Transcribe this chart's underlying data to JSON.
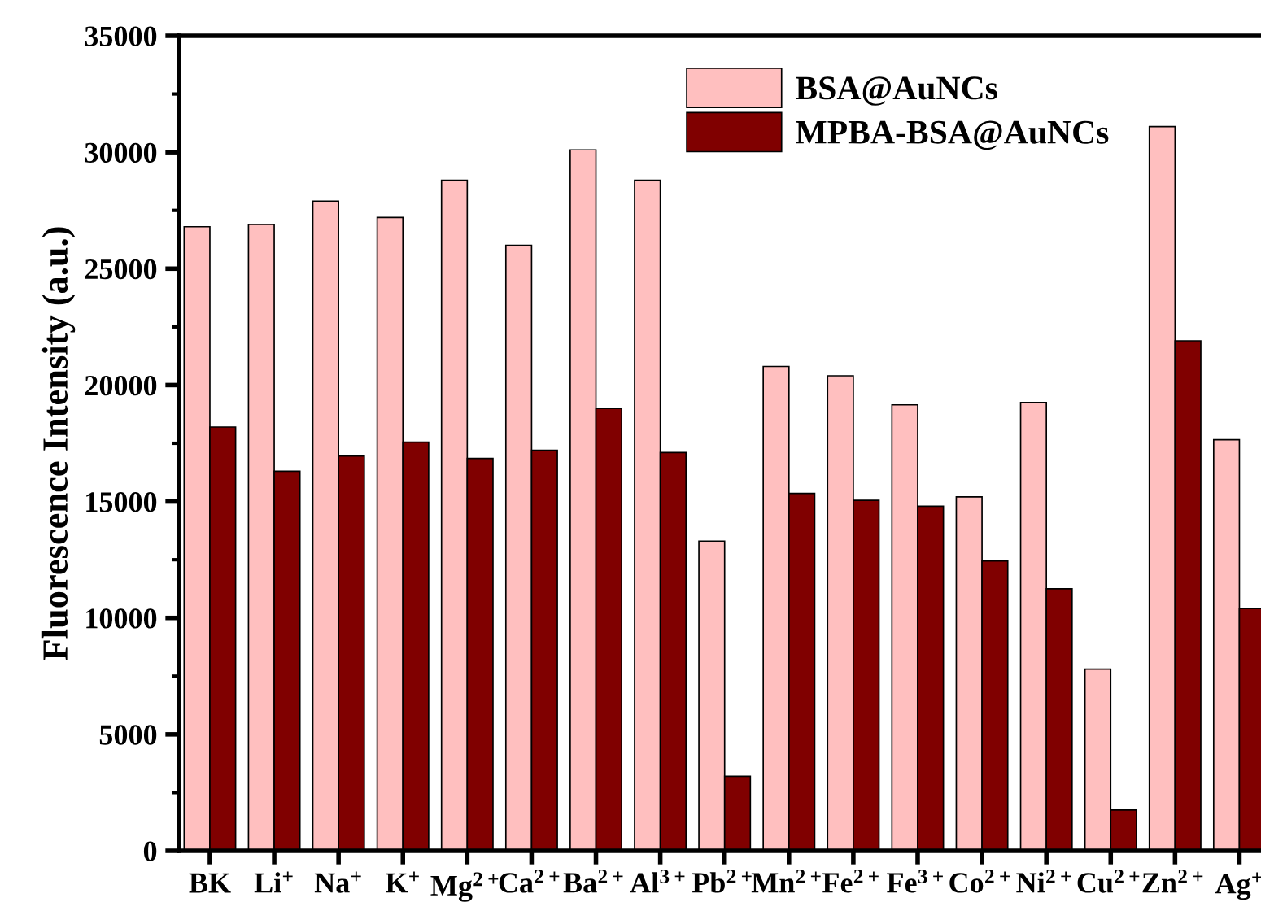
{
  "chart_data": {
    "type": "bar",
    "ylabel": "Fluorescence Intensity (a.u.)",
    "categories": [
      "BK",
      "Li$^{+}$",
      "Na$^{+}$",
      "K$^{+}$",
      "Mg$^{2+}$",
      "Ca$^{2+}$",
      "Ba$^{2+}$",
      "Al$^{3+}$",
      "Pb$^{2+}$",
      "Mn$^{2+}$",
      "Fe$^{2+}$",
      "Fe$^{3+}$",
      "Co$^{2+}$",
      "Ni$^{2+}$",
      "Cu$^{2+}$",
      "Zn$^{2+}$",
      "Ag$^{+}$"
    ],
    "series": [
      {
        "name": "BSA@AuNCs",
        "color": "#ffbfbf",
        "values": [
          26800,
          26900,
          27900,
          27200,
          28800,
          26000,
          30100,
          28800,
          13300,
          20800,
          20400,
          19150,
          15200,
          19250,
          7800,
          31100,
          17650
        ]
      },
      {
        "name": "MPBA-BSA@AuNCs",
        "color": "#800000",
        "values": [
          18200,
          16300,
          16950,
          17550,
          16850,
          17200,
          19000,
          17100,
          3200,
          15350,
          15050,
          14800,
          12450,
          11250,
          1750,
          21900,
          10400
        ]
      }
    ],
    "ylim": [
      0,
      35000
    ],
    "yticks": [
      0,
      5000,
      10000,
      15000,
      20000,
      25000,
      30000,
      35000
    ],
    "grid": false,
    "legend": "top right"
  }
}
